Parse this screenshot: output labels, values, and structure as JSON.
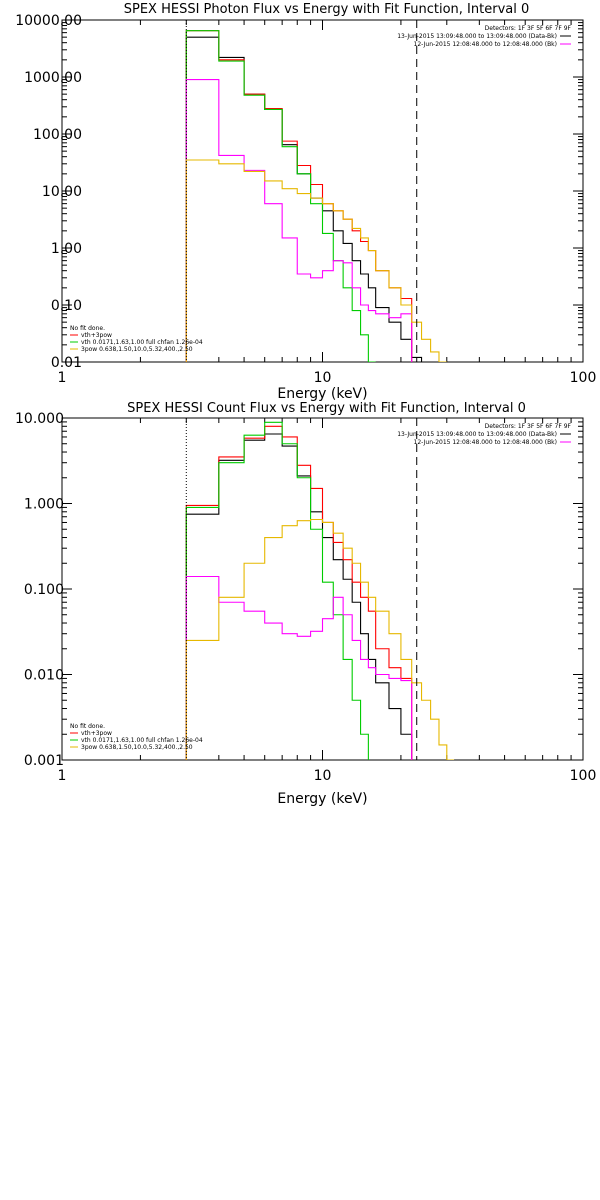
{
  "chart_data": [
    {
      "type": "line",
      "title": "SPEX HESSI Photon Flux vs Energy with Fit Function, Interval 0",
      "xlabel": "Energy (keV)",
      "ylabel": "",
      "xscale": "log",
      "yscale": "log",
      "xlim": [
        1,
        100
      ],
      "ylim": [
        0.01,
        10000
      ],
      "xtick_labels": [
        "1",
        "10",
        "100"
      ],
      "ytick_labels": [
        "0.01",
        "0.10",
        "1.00",
        "10.00",
        "100.00",
        "1000.00",
        "10000.00"
      ],
      "dotted_line_x": 3,
      "dashed_line_x": 23,
      "legend_top": {
        "header": "Detectors: 1F 3F 5F 6F 7F 9F",
        "lines": [
          {
            "text": "13-Jun-2015 13:09:48.000 to 13:09:48.000 (Data-Bk)",
            "color": "#000000"
          },
          {
            "text": "12-Jun-2015 12:08:48.000 to 12:08:48.000 (Bk)",
            "color": "#ff00ff"
          }
        ]
      },
      "legend_bottom": {
        "header": "No fit done.",
        "lines": [
          {
            "text": "vth+3pow",
            "color": "#ff0000"
          },
          {
            "text": "vth 0.0171,1.63,1.00  full chfan 1.26e-04",
            "color": "#00cc00"
          },
          {
            "text": "3pow 0.638,1.50,10.0,5.32,400.,2.50",
            "color": "#e6b800"
          }
        ]
      },
      "bin_edges": [
        3,
        4,
        5,
        6,
        7,
        8,
        9,
        10,
        11,
        12,
        13,
        14,
        15,
        16,
        18,
        20,
        22,
        24,
        26,
        28,
        30
      ],
      "series": [
        {
          "color": "#000000",
          "values": [
            5000,
            2200,
            500,
            270,
            65,
            20,
            7.5,
            4.5,
            2.0,
            1.2,
            0.6,
            0.35,
            0.2,
            0.09,
            0.05,
            0.025,
            0.012
          ]
        },
        {
          "color": "#ff0000",
          "values": [
            6500,
            2000,
            500,
            280,
            75,
            28,
            13,
            6,
            4.5,
            3.2,
            2,
            1.3,
            0.9,
            0.4,
            0.2,
            0.13
          ]
        },
        {
          "color": "#00cc00",
          "values": [
            6500,
            1900,
            480,
            270,
            60,
            20,
            6,
            1.8,
            0.6,
            0.2,
            0.08,
            0.03,
            0.01
          ]
        },
        {
          "color": "#ff00ff",
          "values": [
            900,
            42,
            23,
            6,
            1.5,
            0.35,
            0.3,
            0.4,
            0.6,
            0.55,
            0.2,
            0.1,
            0.08,
            0.07,
            0.06,
            0.07
          ]
        },
        {
          "color": "#e6b800",
          "values": [
            35,
            30,
            22,
            15,
            11,
            9,
            7.5,
            6,
            4.5,
            3.2,
            2.2,
            1.5,
            0.9,
            0.4,
            0.2,
            0.1,
            0.05,
            0.025,
            0.015,
            0.01
          ]
        }
      ]
    },
    {
      "type": "line",
      "title": "SPEX HESSI Count Flux vs Energy with Fit Function, Interval 0",
      "xlabel": "Energy (keV)",
      "ylabel": "",
      "xscale": "log",
      "yscale": "log",
      "xlim": [
        1,
        100
      ],
      "ylim": [
        0.001,
        10
      ],
      "xtick_labels": [
        "1",
        "10",
        "100"
      ],
      "ytick_labels": [
        "0.001",
        "0.010",
        "0.100",
        "1.000",
        "10.000"
      ],
      "dotted_line_x": 3,
      "dashed_line_x": 23,
      "legend_top": {
        "header": "Detectors: 1F 3F 5F 6F 7F 9F",
        "lines": [
          {
            "text": "13-Jun-2015 13:09:48.000 to 13:09:48.000 (Data-Bk)",
            "color": "#000000"
          },
          {
            "text": "12-Jun-2015 12:08:48.000 to 12:08:48.000 (Bk)",
            "color": "#ff00ff"
          }
        ]
      },
      "legend_bottom": {
        "header": "No fit done.",
        "lines": [
          {
            "text": "vth+3pow",
            "color": "#ff0000"
          },
          {
            "text": "vth 0.0171,1.63,1.00  full chfan 1.26e-04",
            "color": "#00cc00"
          },
          {
            "text": "3pow 0.638,1.50,10.0,5.32,400.,2.50",
            "color": "#e6b800"
          }
        ]
      },
      "bin_edges": [
        3,
        4,
        5,
        6,
        7,
        8,
        9,
        10,
        11,
        12,
        13,
        14,
        15,
        16,
        18,
        20,
        22,
        24,
        26,
        28,
        30,
        32,
        34
      ],
      "series": [
        {
          "color": "#000000",
          "values": [
            0.75,
            3.2,
            5.5,
            6.5,
            4.7,
            2.1,
            0.8,
            0.4,
            0.22,
            0.13,
            0.07,
            0.03,
            0.015,
            0.008,
            0.004,
            0.002
          ]
        },
        {
          "color": "#ff0000",
          "values": [
            0.95,
            3.5,
            5.8,
            8.0,
            6.0,
            2.8,
            1.5,
            0.6,
            0.35,
            0.22,
            0.12,
            0.08,
            0.055,
            0.02,
            0.012,
            0.009
          ]
        },
        {
          "color": "#00cc00",
          "values": [
            0.9,
            3.0,
            6.3,
            8.9,
            5.0,
            2.0,
            0.5,
            0.12,
            0.05,
            0.015,
            0.005,
            0.002
          ]
        },
        {
          "color": "#ff00ff",
          "values": [
            0.14,
            0.07,
            0.055,
            0.04,
            0.03,
            0.028,
            0.032,
            0.045,
            0.08,
            0.05,
            0.025,
            0.015,
            0.012,
            0.01,
            0.009,
            0.0085
          ]
        },
        {
          "color": "#e6b800",
          "values": [
            0.025,
            0.08,
            0.2,
            0.4,
            0.55,
            0.63,
            0.65,
            0.6,
            0.45,
            0.3,
            0.2,
            0.12,
            0.08,
            0.055,
            0.03,
            0.015,
            0.008,
            0.005,
            0.003,
            0.0015,
            0.001
          ]
        }
      ]
    }
  ]
}
